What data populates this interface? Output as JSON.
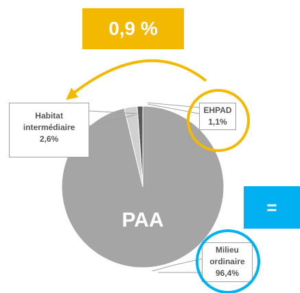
{
  "chart_data": {
    "type": "pie",
    "categories": [
      "EHPAD",
      "Habitat intermédiaire",
      "Milieu ordinaire"
    ],
    "values": [
      1.1,
      2.6,
      96.4
    ],
    "value_labels": [
      "1,1%",
      "2,6%",
      "96,4%"
    ],
    "colors": [
      "#595959",
      "#d0d0d0",
      "#a5a5a5"
    ],
    "center_label": "PAA",
    "annotations": [
      "0,9 %",
      "="
    ]
  }
}
